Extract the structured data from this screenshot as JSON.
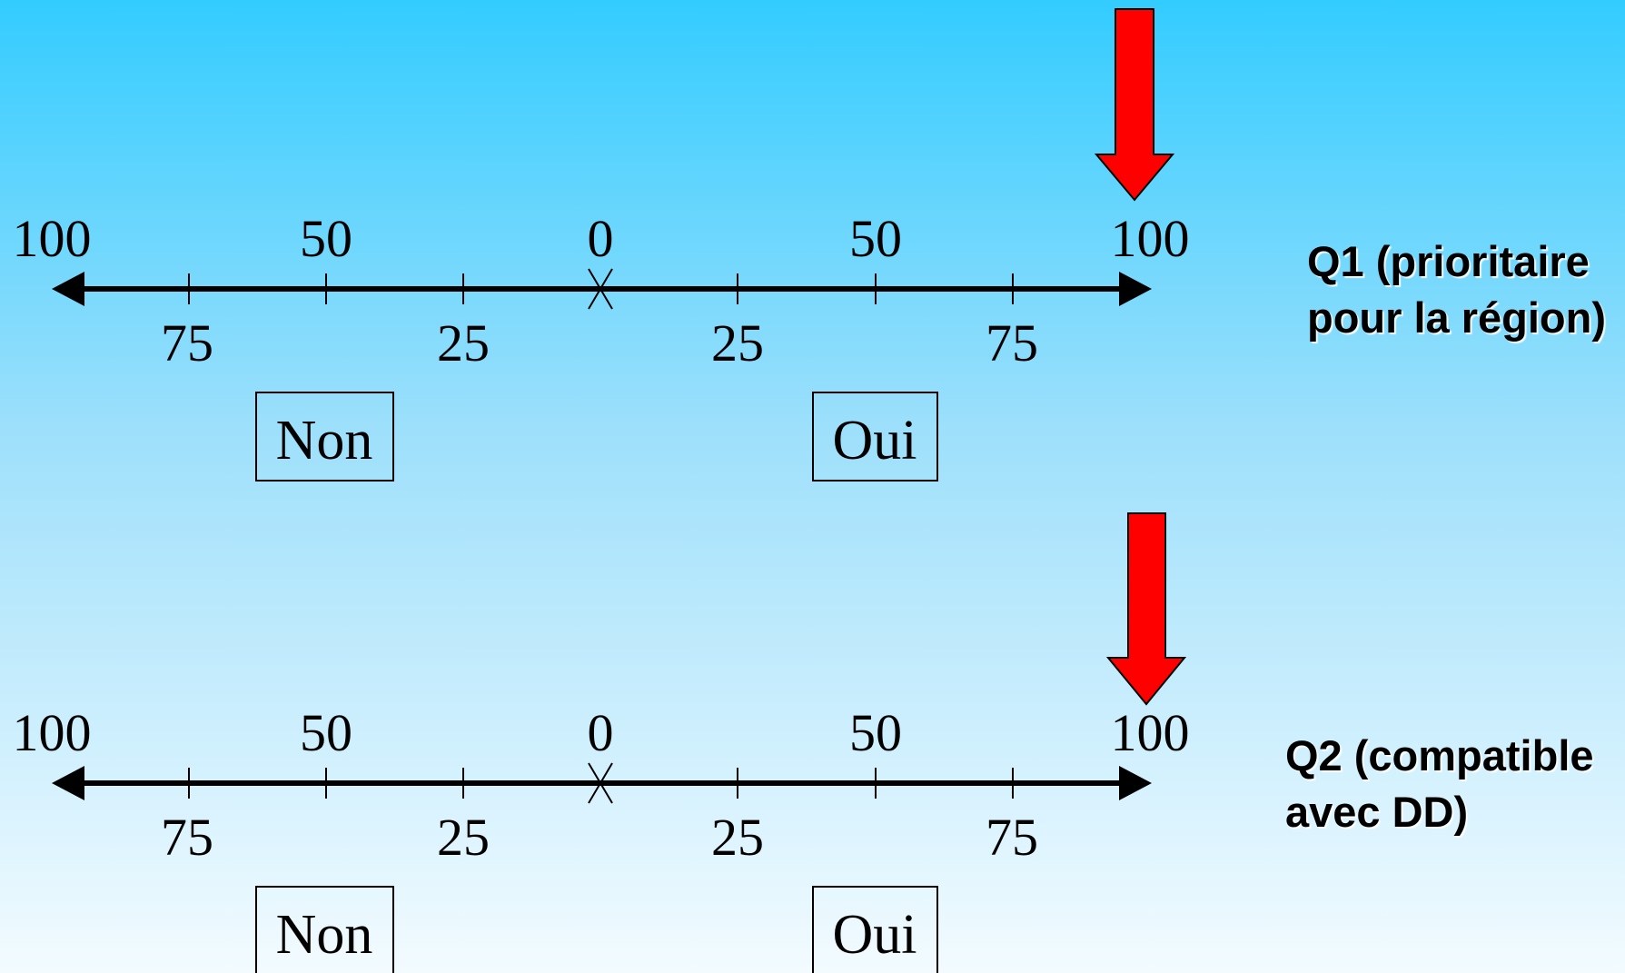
{
  "colors": {
    "background_top": "#33ccff",
    "background_bottom": "#f3fbff",
    "arrow": "#ff0000",
    "line": "#000000"
  },
  "scales": [
    {
      "id": "q1",
      "top_ticks": [
        "100",
        "50",
        "0",
        "50",
        "100"
      ],
      "bottom_ticks": [
        "75",
        "25",
        "25",
        "75"
      ],
      "box_left": "Non",
      "box_right": "Oui",
      "question_lines": [
        "Q1 (prioritaire",
        "pour la région)"
      ],
      "marker_value": 100,
      "marker_side": "Oui",
      "marker_icon": "red-down-arrow-icon"
    },
    {
      "id": "q2",
      "top_ticks": [
        "100",
        "50",
        "0",
        "50",
        "100"
      ],
      "bottom_ticks": [
        "75",
        "25",
        "25",
        "75"
      ],
      "box_left": "Non",
      "box_right": "Oui",
      "question_lines": [
        "Q2 (compatible",
        "avec DD)"
      ],
      "marker_value": 100,
      "marker_side": "Oui",
      "marker_icon": "red-down-arrow-icon"
    }
  ]
}
